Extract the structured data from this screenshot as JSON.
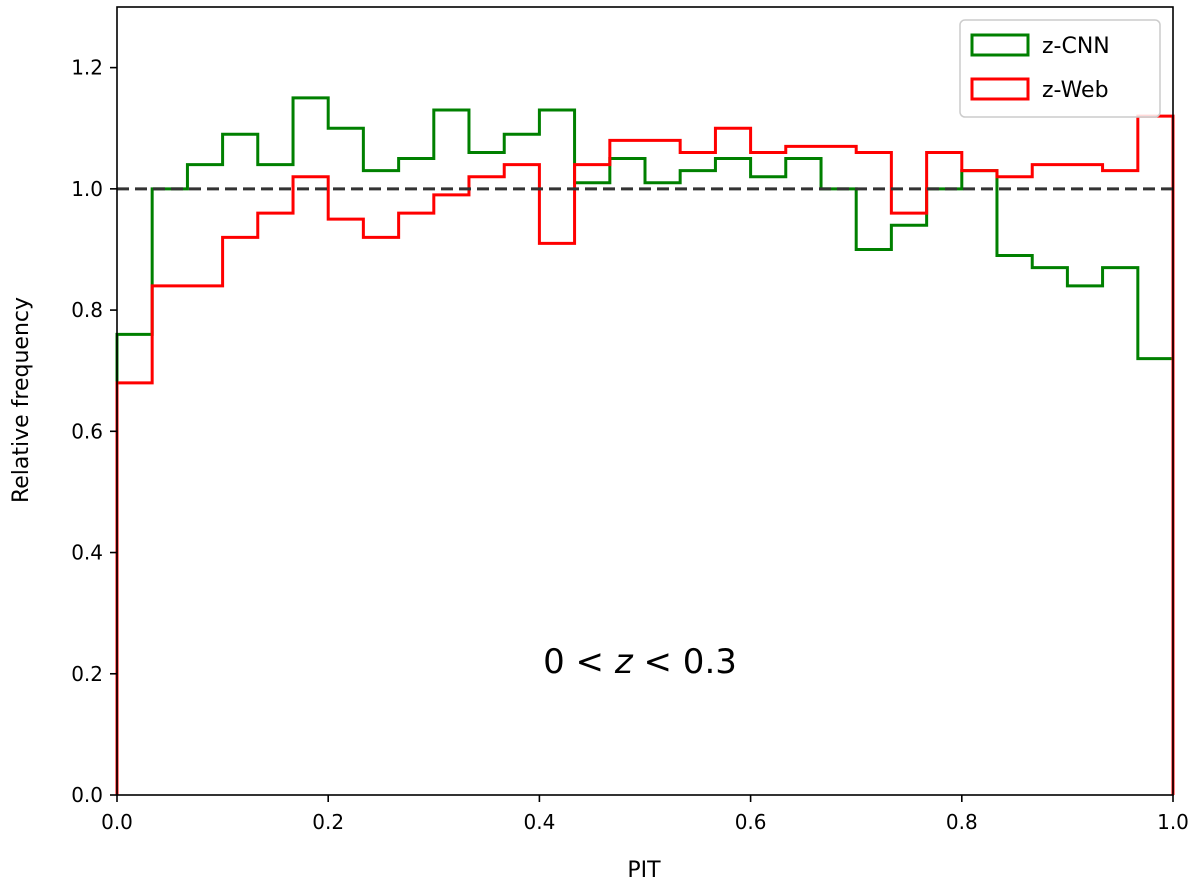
{
  "chart_data": {
    "type": "histogram-step",
    "xlabel": "PIT",
    "ylabel": "Relative frequency",
    "xlim": [
      0.0,
      1.0
    ],
    "ylim": [
      0.0,
      1.3
    ],
    "xticks": [
      "0.0",
      "0.2",
      "0.4",
      "0.6",
      "0.8",
      "1.0"
    ],
    "yticks": [
      "0.0",
      "0.2",
      "0.4",
      "0.6",
      "0.8",
      "1.0",
      "1.2"
    ],
    "bin_edges": [
      0.0,
      0.0333,
      0.0667,
      0.1,
      0.1333,
      0.1667,
      0.2,
      0.2333,
      0.2667,
      0.3,
      0.3333,
      0.3667,
      0.4,
      0.4333,
      0.4667,
      0.5,
      0.5333,
      0.5667,
      0.6,
      0.6333,
      0.6667,
      0.7,
      0.7333,
      0.7667,
      0.8,
      0.8333,
      0.8667,
      0.9,
      0.9333,
      0.9667,
      1.0
    ],
    "series": [
      {
        "name": "z-CNN",
        "color": "#008000",
        "values": [
          0.76,
          1.0,
          1.04,
          1.09,
          1.04,
          1.15,
          1.1,
          1.03,
          1.05,
          1.13,
          1.06,
          1.09,
          1.13,
          1.01,
          1.05,
          1.01,
          1.03,
          1.05,
          1.02,
          1.05,
          1.0,
          0.9,
          0.94,
          1.0,
          1.03,
          0.89,
          0.87,
          0.84,
          0.87,
          0.72
        ]
      },
      {
        "name": "z-Web",
        "color": "#ff0000",
        "values": [
          0.68,
          0.84,
          0.84,
          0.92,
          0.96,
          1.02,
          0.95,
          0.92,
          0.96,
          0.99,
          1.02,
          1.04,
          0.91,
          1.04,
          1.08,
          1.08,
          1.06,
          1.1,
          1.06,
          1.07,
          1.07,
          1.06,
          0.96,
          1.06,
          1.03,
          1.02,
          1.04,
          1.04,
          1.03,
          1.12
        ]
      }
    ],
    "reference_line": {
      "y": 1.0,
      "style": "dashed",
      "color": "#333333"
    },
    "annotation": {
      "prefix": "0 < ",
      "var": "z",
      "suffix": " < 0.3"
    },
    "legend": {
      "position": "top-right"
    },
    "grid": false
  }
}
